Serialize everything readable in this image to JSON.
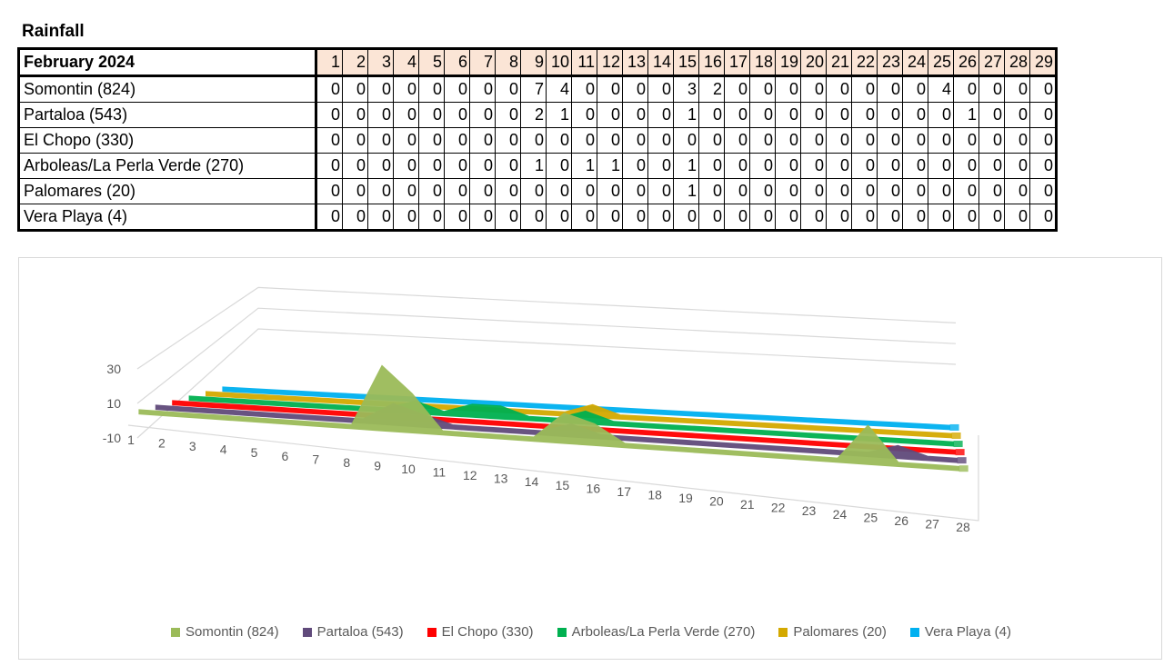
{
  "title": "Rainfall",
  "table": {
    "header": "February 2024",
    "days": [
      "1",
      "2",
      "3",
      "4",
      "5",
      "6",
      "7",
      "8",
      "9",
      "10",
      "11",
      "12",
      "13",
      "14",
      "15",
      "16",
      "17",
      "18",
      "19",
      "20",
      "21",
      "22",
      "23",
      "24",
      "25",
      "26",
      "27",
      "28",
      "29"
    ],
    "rows": [
      {
        "station": "Somontin (824)",
        "values": [
          0,
          0,
          0,
          0,
          0,
          0,
          0,
          0,
          7,
          4,
          0,
          0,
          0,
          0,
          3,
          2,
          0,
          0,
          0,
          0,
          0,
          0,
          0,
          0,
          4,
          0,
          0,
          0,
          0
        ]
      },
      {
        "station": "Partaloa (543)",
        "values": [
          0,
          0,
          0,
          0,
          0,
          0,
          0,
          0,
          2,
          1,
          0,
          0,
          0,
          0,
          1,
          0,
          0,
          0,
          0,
          0,
          0,
          0,
          0,
          0,
          0,
          1,
          0,
          0,
          0
        ]
      },
      {
        "station": "El Chopo (330)",
        "values": [
          0,
          0,
          0,
          0,
          0,
          0,
          0,
          0,
          0,
          0,
          0,
          0,
          0,
          0,
          0,
          0,
          0,
          0,
          0,
          0,
          0,
          0,
          0,
          0,
          0,
          0,
          0,
          0,
          0
        ]
      },
      {
        "station": "Arboleas/La Perla Verde (270)",
        "values": [
          0,
          0,
          0,
          0,
          0,
          0,
          0,
          0,
          1,
          0,
          1,
          1,
          0,
          0,
          1,
          0,
          0,
          0,
          0,
          0,
          0,
          0,
          0,
          0,
          0,
          0,
          0,
          0,
          0
        ]
      },
      {
        "station": "Palomares (20)",
        "values": [
          0,
          0,
          0,
          0,
          0,
          0,
          0,
          0,
          0,
          0,
          0,
          0,
          0,
          0,
          1,
          0,
          0,
          0,
          0,
          0,
          0,
          0,
          0,
          0,
          0,
          0,
          0,
          0,
          0
        ]
      },
      {
        "station": "Vera Playa (4)",
        "values": [
          0,
          0,
          0,
          0,
          0,
          0,
          0,
          0,
          0,
          0,
          0,
          0,
          0,
          0,
          0,
          0,
          0,
          0,
          0,
          0,
          0,
          0,
          0,
          0,
          0,
          0,
          0,
          0,
          0
        ]
      }
    ]
  },
  "chart_data": {
    "type": "area",
    "title": "",
    "categories": [
      "1",
      "2",
      "3",
      "4",
      "5",
      "6",
      "7",
      "8",
      "9",
      "10",
      "11",
      "12",
      "13",
      "14",
      "15",
      "16",
      "17",
      "18",
      "19",
      "20",
      "21",
      "22",
      "23",
      "24",
      "25",
      "26",
      "27",
      "28"
    ],
    "y_ticks": [
      "-10",
      "10",
      "30"
    ],
    "ylim": [
      -10,
      30
    ],
    "legend_position": "bottom",
    "series": [
      {
        "name": "Somontin (824)",
        "color": "#9bbb59",
        "values": [
          0,
          0,
          0,
          0,
          0,
          0,
          0,
          0,
          7,
          4,
          0,
          0,
          0,
          0,
          3,
          2,
          0,
          0,
          0,
          0,
          0,
          0,
          0,
          0,
          4,
          0,
          0,
          0
        ]
      },
      {
        "name": "Partaloa (543)",
        "color": "#604a7b",
        "values": [
          0,
          0,
          0,
          0,
          0,
          0,
          0,
          0,
          2,
          1,
          0,
          0,
          0,
          0,
          1,
          0,
          0,
          0,
          0,
          0,
          0,
          0,
          0,
          0,
          0,
          1,
          0,
          0
        ]
      },
      {
        "name": "El Chopo (330)",
        "color": "#ff0000",
        "values": [
          0,
          0,
          0,
          0,
          0,
          0,
          0,
          0,
          0,
          0,
          0,
          0,
          0,
          0,
          0,
          0,
          0,
          0,
          0,
          0,
          0,
          0,
          0,
          0,
          0,
          0,
          0,
          0
        ]
      },
      {
        "name": "Arboleas/La Perla Verde (270)",
        "color": "#00b050",
        "values": [
          0,
          0,
          0,
          0,
          0,
          0,
          0,
          0,
          1,
          0,
          1,
          1,
          0,
          0,
          1,
          0,
          0,
          0,
          0,
          0,
          0,
          0,
          0,
          0,
          0,
          0,
          0,
          0
        ]
      },
      {
        "name": "Palomares (20)",
        "color": "#d4a900",
        "values": [
          0,
          0,
          0,
          0,
          0,
          0,
          0,
          0,
          0,
          0,
          0,
          0,
          0,
          0,
          1,
          0,
          0,
          0,
          0,
          0,
          0,
          0,
          0,
          0,
          0,
          0,
          0,
          0
        ]
      },
      {
        "name": "Vera Playa (4)",
        "color": "#00b0f0",
        "values": [
          0,
          0,
          0,
          0,
          0,
          0,
          0,
          0,
          0,
          0,
          0,
          0,
          0,
          0,
          0,
          0,
          0,
          0,
          0,
          0,
          0,
          0,
          0,
          0,
          0,
          0,
          0,
          0
        ]
      }
    ]
  }
}
